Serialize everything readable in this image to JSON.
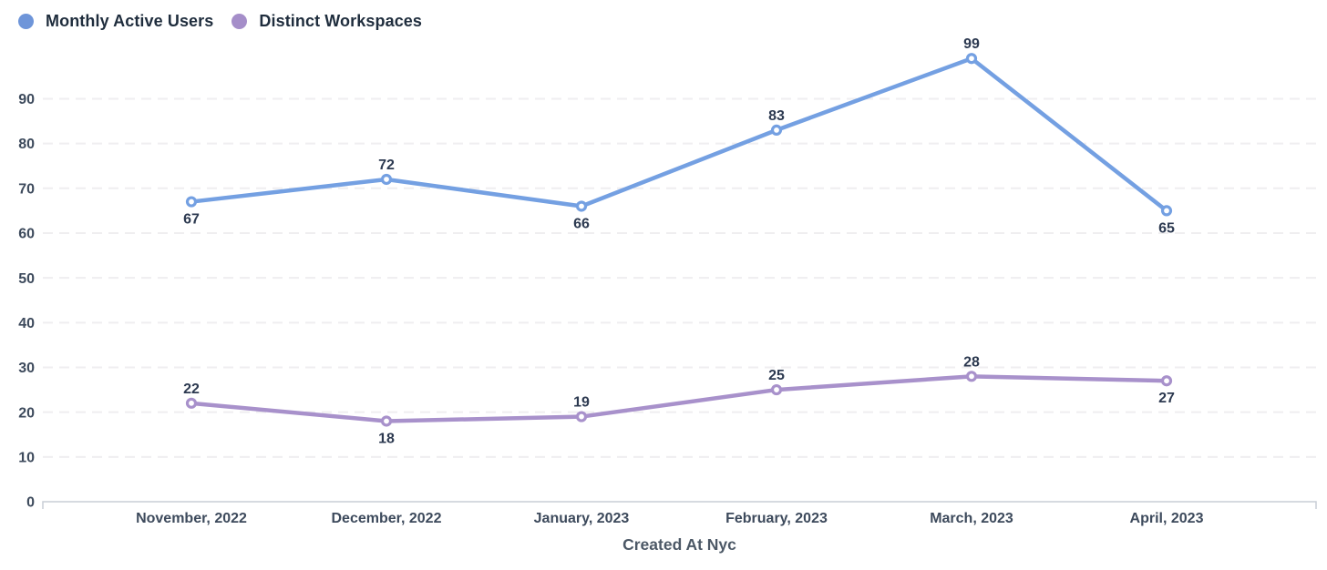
{
  "legend": {
    "items": [
      {
        "label": "Monthly Active Users",
        "color": "#6e95d9"
      },
      {
        "label": "Distinct Workspaces",
        "color": "#a58ec9"
      }
    ]
  },
  "chart_data": {
    "type": "line",
    "categories": [
      "November, 2022",
      "December, 2022",
      "January, 2023",
      "February, 2023",
      "March, 2023",
      "April, 2023"
    ],
    "series": [
      {
        "name": "Monthly Active Users",
        "color": "#74a0e2",
        "values": [
          67,
          72,
          66,
          83,
          99,
          65
        ],
        "label_positions": [
          "below",
          "above",
          "below",
          "above",
          "above",
          "below"
        ]
      },
      {
        "name": "Distinct Workspaces",
        "color": "#a891cb",
        "values": [
          22,
          18,
          19,
          25,
          28,
          27
        ],
        "label_positions": [
          "above",
          "below",
          "above",
          "above",
          "above",
          "below"
        ]
      }
    ],
    "title": "",
    "xlabel": "Created At Nyc",
    "ylabel": "",
    "ylim": [
      0,
      100
    ],
    "yticks": [
      0,
      10,
      20,
      30,
      40,
      50,
      60,
      70,
      80,
      90
    ],
    "grid": "horizontal-dashed",
    "legend_position": "top-left",
    "grid_color": "#efeef0",
    "axis_color": "#c8cdd5",
    "marker": "open-circle"
  }
}
